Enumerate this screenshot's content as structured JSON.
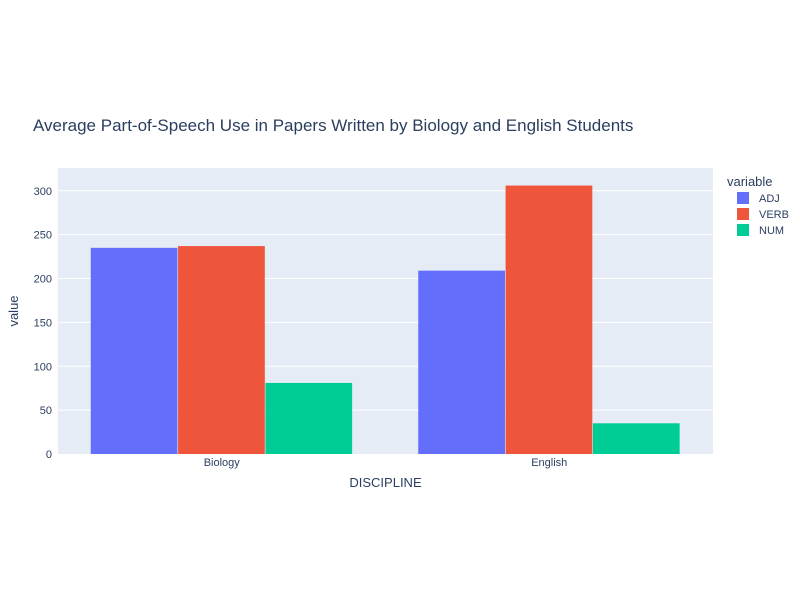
{
  "chart_data": {
    "type": "bar",
    "title": "Average Part-of-Speech Use in Papers Written by Biology and English Students",
    "xlabel": "DISCIPLINE",
    "ylabel": "value",
    "categories": [
      "Biology",
      "English"
    ],
    "series": [
      {
        "name": "ADJ",
        "values": [
          235,
          209
        ],
        "color": "#636efa"
      },
      {
        "name": "VERB",
        "values": [
          237,
          306
        ],
        "color": "#ef553b"
      },
      {
        "name": "NUM",
        "values": [
          81,
          35
        ],
        "color": "#00cc96"
      }
    ],
    "ylim": [
      0,
      326
    ],
    "yticks": [
      0,
      50,
      100,
      150,
      200,
      250,
      300
    ],
    "grid": true,
    "legend": {
      "title": "variable",
      "placement": "right"
    },
    "colors": {
      "plot_background": "#e5ecf6",
      "gridline": "#ffffff",
      "text": "#2a3f5f"
    }
  }
}
